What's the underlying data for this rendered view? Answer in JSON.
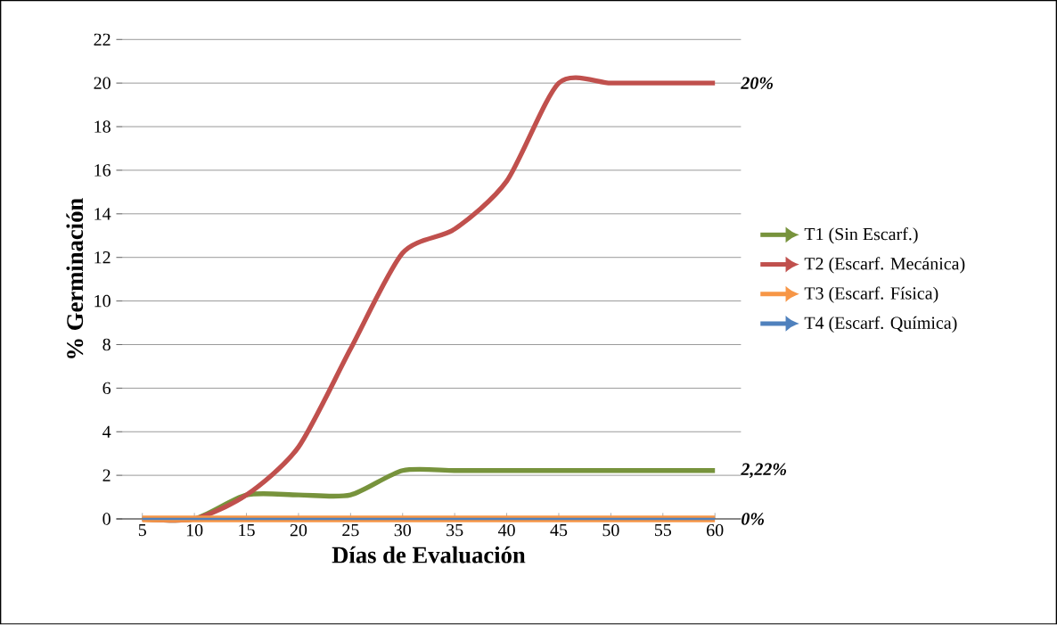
{
  "chart_data": {
    "type": "line",
    "xlabel": "Días de Evaluación",
    "ylabel": "% Germinación",
    "categories": [
      "5",
      "10",
      "15",
      "20",
      "25",
      "30",
      "35",
      "40",
      "45",
      "50",
      "55",
      "60"
    ],
    "series": [
      {
        "name": "T1 (Sin Escarf.)",
        "color": "#77933c",
        "values": [
          0,
          0,
          1.1,
          1.1,
          1.1,
          2.22,
          2.22,
          2.22,
          2.22,
          2.22,
          2.22,
          2.22
        ]
      },
      {
        "name": "T2 (Escarf. Mecánica)",
        "color": "#c0504d",
        "values": [
          0,
          0,
          1.1,
          3.3,
          7.8,
          12.2,
          13.3,
          15.5,
          20,
          20,
          20,
          20
        ]
      },
      {
        "name": "T3 (Escarf. Física)",
        "color": "#f79646",
        "values": [
          0,
          0,
          0,
          0,
          0,
          0,
          0,
          0,
          0,
          0,
          0,
          0
        ]
      },
      {
        "name": "T4 (Escarf. Química)",
        "color": "#4f81bd",
        "values": [
          0,
          0,
          0,
          0,
          0,
          0,
          0,
          0,
          0,
          0,
          0,
          0
        ]
      }
    ],
    "ylim": [
      0,
      22
    ],
    "yticks": [
      0,
      2,
      4,
      6,
      8,
      10,
      12,
      14,
      16,
      18,
      20,
      22
    ],
    "grid": "y",
    "legend": "right",
    "annotations": [
      {
        "text": "20%",
        "x": "60",
        "y": 20
      },
      {
        "text": "2,22%",
        "x": "60",
        "y": 2.22
      },
      {
        "text": "0%",
        "x": "60",
        "y": 0
      }
    ]
  }
}
